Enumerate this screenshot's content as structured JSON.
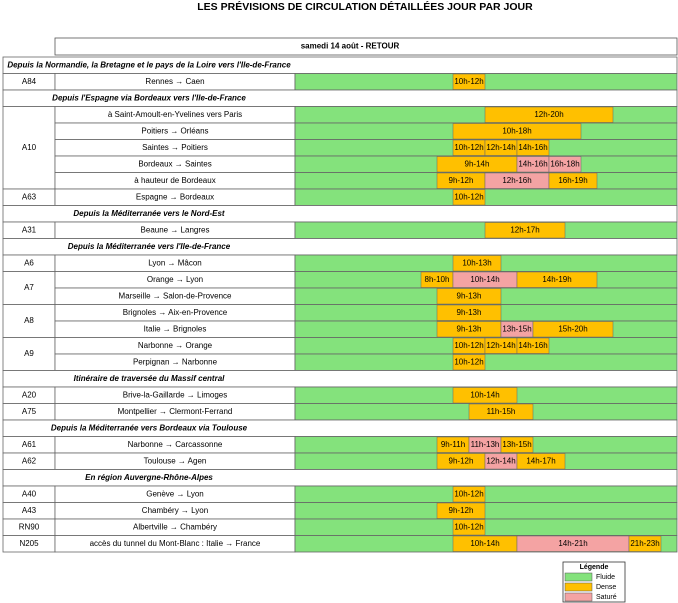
{
  "title": "LES PRÉVISIONS DE CIRCULATION DÉTAILLÉES JOUR PAR JOUR",
  "header": "samedi 14 août - RETOUR",
  "legend": {
    "title": "Légende",
    "items": [
      {
        "label": "Fluide",
        "color": "#84e27c"
      },
      {
        "label": "Dense",
        "color": "#ffc000"
      },
      {
        "label": "Saturé",
        "color": "#f4a3a3"
      }
    ]
  },
  "sections": [
    {
      "title": "Depuis la Normandie, la Bretagne et le pays de la Loire vers l'Ile-de-France",
      "roads": [
        {
          "road": "A84",
          "routes": [
            {
              "label": "Rennes → Caen",
              "segments": [
                {
                  "label": "10h-12h",
                  "level": 1
                }
              ]
            }
          ]
        }
      ]
    },
    {
      "title": "Depuis l'Espagne via Bordeaux vers l'Ile-de-France",
      "roads": [
        {
          "road": "A10",
          "routes": [
            {
              "label": "à Saint-Amoult-en-Yvelines vers Paris",
              "segments": [
                {
                  "label": "12h-20h",
                  "level": 1
                }
              ]
            },
            {
              "label": "Poitiers → Orléans",
              "segments": [
                {
                  "label": "10h-18h",
                  "level": 1
                }
              ]
            },
            {
              "label": "Saintes → Poitiers",
              "segments": [
                {
                  "label": "10h-12h",
                  "level": 1
                },
                {
                  "label": "12h-14h",
                  "level": 1
                },
                {
                  "label": "14h-16h",
                  "level": 1
                }
              ]
            },
            {
              "label": "Bordeaux → Saintes",
              "segments": [
                {
                  "label": "9h-14h",
                  "level": 1
                },
                {
                  "label": "14h-16h",
                  "level": 2
                },
                {
                  "label": "16h-18h",
                  "level": 2
                }
              ]
            },
            {
              "label": "à hauteur de Bordeaux",
              "segments": [
                {
                  "label": "9h-12h",
                  "level": 1
                },
                {
                  "label": "12h-16h",
                  "level": 2
                },
                {
                  "label": "16h-19h",
                  "level": 1
                }
              ]
            }
          ]
        },
        {
          "road": "A63",
          "routes": [
            {
              "label": "Espagne → Bordeaux",
              "segments": [
                {
                  "label": "10h-12h",
                  "level": 1
                }
              ]
            }
          ]
        }
      ]
    },
    {
      "title": "Depuis la Méditerranée vers le Nord-Est",
      "roads": [
        {
          "road": "A31",
          "routes": [
            {
              "label": "Beaune → Langres",
              "segments": [
                {
                  "label": "12h-17h",
                  "level": 1
                }
              ]
            }
          ]
        }
      ]
    },
    {
      "title": "Depuis la Méditerranée vers l'Ile-de-France",
      "roads": [
        {
          "road": "A6",
          "routes": [
            {
              "label": "Lyon → Mâcon",
              "segments": [
                {
                  "label": "10h-13h",
                  "level": 1
                }
              ]
            }
          ]
        },
        {
          "road": "A7",
          "routes": [
            {
              "label": "Orange → Lyon",
              "segments": [
                {
                  "label": "8h-10h",
                  "level": 1
                },
                {
                  "label": "10h-14h",
                  "level": 2
                },
                {
                  "label": "14h-19h",
                  "level": 1
                }
              ]
            },
            {
              "label": "Marseille → Salon-de-Provence",
              "segments": [
                {
                  "label": "9h-13h",
                  "level": 1
                }
              ]
            }
          ]
        },
        {
          "road": "A8",
          "routes": [
            {
              "label": "Brignoles → Aix-en-Provence",
              "segments": [
                {
                  "label": "9h-13h",
                  "level": 1
                }
              ]
            },
            {
              "label": "Italie → Brignoles",
              "segments": [
                {
                  "label": "9h-13h",
                  "level": 1
                },
                {
                  "label": "13h-15h",
                  "level": 2
                },
                {
                  "label": "15h-20h",
                  "level": 1
                }
              ]
            }
          ]
        },
        {
          "road": "A9",
          "routes": [
            {
              "label": "Narbonne → Orange",
              "segments": [
                {
                  "label": "10h-12h",
                  "level": 1
                },
                {
                  "label": "12h-14h",
                  "level": 1
                },
                {
                  "label": "14h-16h",
                  "level": 1
                }
              ]
            },
            {
              "label": "Perpignan → Narbonne",
              "segments": [
                {
                  "label": "10h-12h",
                  "level": 1
                }
              ]
            }
          ]
        }
      ]
    },
    {
      "title": "Itinéraire de traversée du Massif central",
      "roads": [
        {
          "road": "A20",
          "routes": [
            {
              "label": "Brive-la-Gaillarde → Limoges",
              "segments": [
                {
                  "label": "10h-14h",
                  "level": 1
                }
              ]
            }
          ]
        },
        {
          "road": "A75",
          "routes": [
            {
              "label": "Montpellier → Clermont-Ferrand",
              "segments": [
                {
                  "label": "11h-15h",
                  "level": 1
                }
              ]
            }
          ]
        }
      ]
    },
    {
      "title": "Depuis la Méditerranée vers Bordeaux via Toulouse",
      "roads": [
        {
          "road": "A61",
          "routes": [
            {
              "label": "Narbonne → Carcassonne",
              "segments": [
                {
                  "label": "9h-11h",
                  "level": 1
                },
                {
                  "label": "11h-13h",
                  "level": 2
                },
                {
                  "label": "13h-15h",
                  "level": 1
                }
              ]
            }
          ]
        },
        {
          "road": "A62",
          "routes": [
            {
              "label": "Toulouse → Agen",
              "segments": [
                {
                  "label": "9h-12h",
                  "level": 1
                },
                {
                  "label": "12h-14h",
                  "level": 2
                },
                {
                  "label": "14h-17h",
                  "level": 1
                }
              ]
            }
          ]
        }
      ]
    },
    {
      "title": "En région Auvergne-Rhône-Alpes",
      "roads": [
        {
          "road": "A40",
          "routes": [
            {
              "label": "Genève → Lyon",
              "segments": [
                {
                  "label": "10h-12h",
                  "level": 1
                }
              ]
            }
          ]
        },
        {
          "road": "A43",
          "routes": [
            {
              "label": "Chambéry → Lyon",
              "segments": [
                {
                  "label": "9h-12h",
                  "level": 1
                }
              ]
            }
          ]
        },
        {
          "road": "RN90",
          "routes": [
            {
              "label": "Albertville → Chambéry",
              "segments": [
                {
                  "label": "10h-12h",
                  "level": 1
                }
              ]
            }
          ]
        },
        {
          "road": "N205",
          "routes": [
            {
              "label": "accès du tunnel du Mont-Blanc : Italie → France",
              "segments": [
                {
                  "label": "10h-14h",
                  "level": 1
                },
                {
                  "label": "14h-21h",
                  "level": 2
                },
                {
                  "label": "21h-23h",
                  "level": 1
                }
              ]
            }
          ]
        }
      ]
    }
  ]
}
